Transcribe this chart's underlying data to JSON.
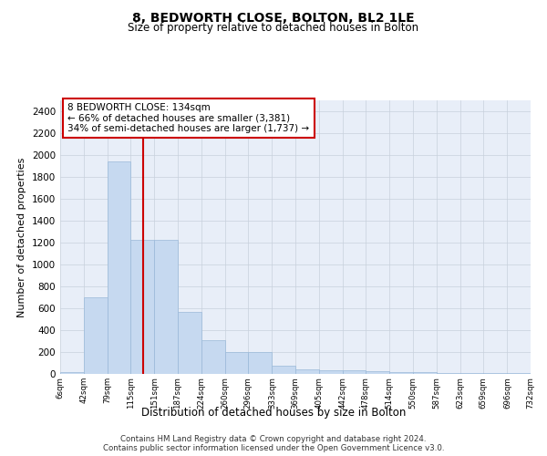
{
  "title": "8, BEDWORTH CLOSE, BOLTON, BL2 1LE",
  "subtitle": "Size of property relative to detached houses in Bolton",
  "xlabel": "Distribution of detached houses by size in Bolton",
  "ylabel": "Number of detached properties",
  "bar_color": "#c6d9f0",
  "bar_edge_color": "#9ab8d8",
  "grid_color": "#c8d0dc",
  "background_color": "#e8eef8",
  "annotation_box_color": "#cc0000",
  "vline_color": "#cc0000",
  "property_size": 134,
  "bin_edges": [
    6,
    42,
    79,
    115,
    151,
    187,
    224,
    260,
    296,
    333,
    369,
    405,
    442,
    478,
    514,
    550,
    587,
    623,
    659,
    696,
    732
  ],
  "bin_labels": [
    "6sqm",
    "42sqm",
    "79sqm",
    "115sqm",
    "151sqm",
    "187sqm",
    "224sqm",
    "260sqm",
    "296sqm",
    "333sqm",
    "369sqm",
    "405sqm",
    "442sqm",
    "478sqm",
    "514sqm",
    "550sqm",
    "587sqm",
    "623sqm",
    "659sqm",
    "696sqm",
    "732sqm"
  ],
  "bar_heights": [
    15,
    700,
    1940,
    1225,
    1225,
    570,
    305,
    200,
    200,
    75,
    40,
    35,
    30,
    25,
    20,
    18,
    5,
    5,
    5,
    5,
    15
  ],
  "ylim": [
    0,
    2500
  ],
  "yticks": [
    0,
    200,
    400,
    600,
    800,
    1000,
    1200,
    1400,
    1600,
    1800,
    2000,
    2200,
    2400
  ],
  "annotation_text": "8 BEDWORTH CLOSE: 134sqm\n← 66% of detached houses are smaller (3,381)\n34% of semi-detached houses are larger (1,737) →",
  "footer_line1": "Contains HM Land Registry data © Crown copyright and database right 2024.",
  "footer_line2": "Contains public sector information licensed under the Open Government Licence v3.0."
}
